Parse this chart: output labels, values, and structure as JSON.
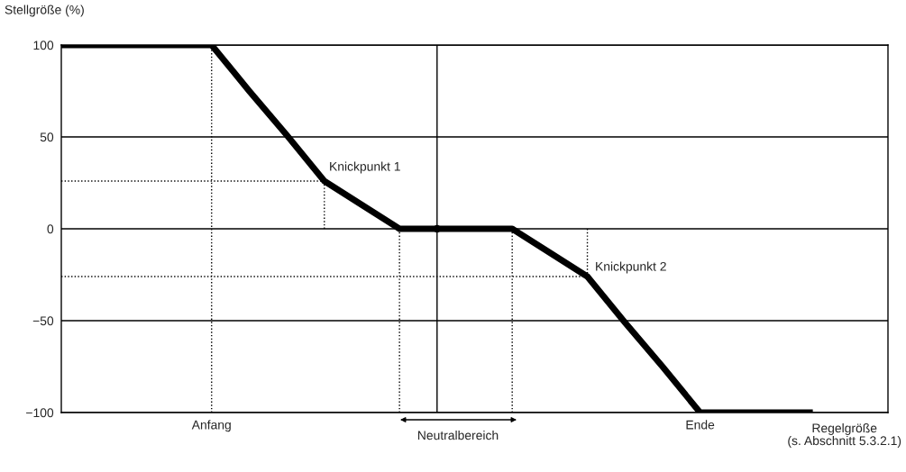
{
  "chart_data": {
    "type": "line",
    "ylabel": "Stellgröße (%)",
    "xlabel": "Regelgröße\n(s. Abschnitt 5.3.2.1)",
    "categories": [
      null,
      null,
      null,
      null,
      "Anfang",
      null,
      null,
      null,
      null,
      null,
      null,
      null,
      null,
      null,
      null,
      null,
      null,
      "Ende",
      null,
      null,
      null,
      null,
      null
    ],
    "ylim": [
      -100,
      100
    ],
    "yticks": [
      {
        "value": -100,
        "label": "−100"
      },
      {
        "value": -50,
        "label": "−50"
      },
      0,
      50,
      100
    ],
    "grid": "y",
    "series": [
      {
        "color": "#000000",
        "line_style": "solid",
        "values": [
          100,
          100,
          100,
          100,
          100,
          75,
          51,
          26,
          13,
          0,
          0,
          0,
          0,
          -13,
          -26,
          -51,
          -75,
          -100,
          -100,
          -100,
          -100,
          null,
          null
        ],
        "errors": [
          null,
          null,
          null,
          null,
          [
            -100,
            100
          ],
          null,
          null,
          [
            0,
            26
          ],
          null,
          [
            -100,
            0
          ],
          null,
          null,
          [
            -100,
            0
          ],
          null,
          [
            -26,
            0
          ],
          null,
          null,
          null,
          null,
          null,
          null,
          null,
          null
        ]
      },
      {
        "color": "#000000",
        "line_style": "dotted",
        "values": [
          26,
          26,
          26,
          26,
          26,
          26,
          26,
          26,
          null,
          null,
          null,
          null,
          null,
          null,
          null,
          null,
          null,
          null,
          null,
          null,
          null,
          null,
          null
        ]
      },
      {
        "color": "#000000",
        "line_style": "dotted",
        "values": [
          -26,
          -26,
          -26,
          -26,
          -26,
          -26,
          -26,
          -26,
          -26,
          -26,
          -26,
          -26,
          -26,
          -26,
          -26,
          null,
          null,
          null,
          null,
          null,
          null,
          null,
          null
        ]
      },
      {
        "type": "scatter",
        "marker": "circle",
        "color": "#000000",
        "line_style": "solid",
        "values": [
          null,
          null,
          null,
          null,
          null,
          null,
          null,
          null,
          null,
          null,
          0,
          null,
          null,
          null,
          null,
          null,
          null,
          null,
          null,
          null,
          null,
          null,
          null
        ],
        "errors": [
          null,
          null,
          null,
          null,
          null,
          null,
          null,
          null,
          null,
          null,
          [
            -100,
            100
          ],
          null,
          null,
          null,
          null,
          null,
          null,
          null,
          null,
          null,
          null,
          null,
          null
        ]
      }
    ],
    "annotations": [
      "Knickpunkt 1",
      "Knickpunkt 2",
      "Neutralbereich"
    ]
  }
}
